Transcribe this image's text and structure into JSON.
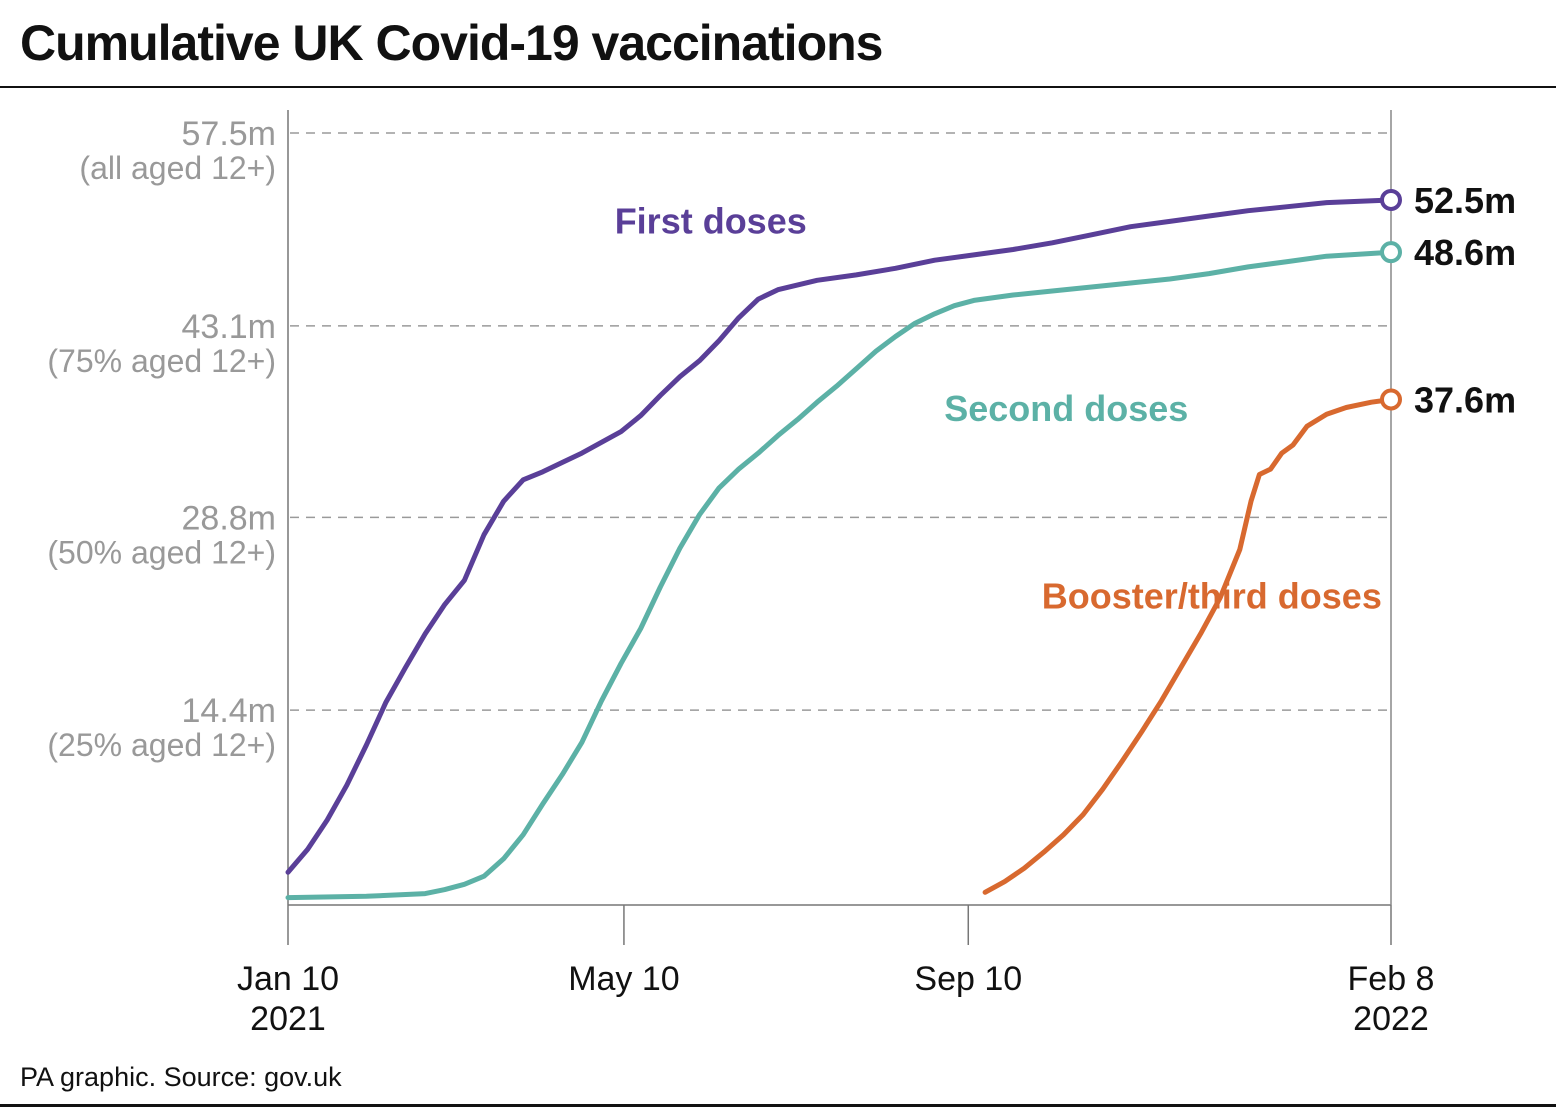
{
  "title": "Cumulative UK Covid-19 vaccinations",
  "source": "PA graphic. Source: gov.uk",
  "chart_data": {
    "type": "line",
    "xlabel": "",
    "ylabel": "",
    "ylim": [
      0,
      57.5
    ],
    "x_range": [
      "2021-01-10",
      "2022-02-08"
    ],
    "grid": "horizontal dashed",
    "y_ticks": [
      {
        "value": 57.5,
        "label": "57.5m",
        "sublabel": "(all aged 12+)"
      },
      {
        "value": 43.1,
        "label": "43.1m",
        "sublabel": "(75% aged 12+)"
      },
      {
        "value": 28.8,
        "label": "28.8m",
        "sublabel": "(50% aged 12+)"
      },
      {
        "value": 14.4,
        "label": "14.4m",
        "sublabel": "(25% aged 12+)"
      }
    ],
    "x_ticks": [
      {
        "date": "2021-01-10",
        "label": "Jan 10",
        "sublabel": "2021"
      },
      {
        "date": "2021-05-10",
        "label": "May 10",
        "sublabel": ""
      },
      {
        "date": "2021-09-10",
        "label": "Sep 10",
        "sublabel": ""
      },
      {
        "date": "2022-02-08",
        "label": "Feb 8",
        "sublabel": "2022"
      }
    ],
    "series": [
      {
        "name": "First doses",
        "color": "#5a3f98",
        "end_label": "52.5m",
        "label_date": "2021-06-10",
        "label_value": 50.0,
        "points": [
          [
            "2021-01-10",
            2.3
          ],
          [
            "2021-01-17",
            4.0
          ],
          [
            "2021-01-24",
            6.2
          ],
          [
            "2021-01-31",
            8.8
          ],
          [
            "2021-02-07",
            11.8
          ],
          [
            "2021-02-14",
            15.0
          ],
          [
            "2021-02-21",
            17.6
          ],
          [
            "2021-02-28",
            20.1
          ],
          [
            "2021-03-07",
            22.3
          ],
          [
            "2021-03-14",
            24.1
          ],
          [
            "2021-03-21",
            27.5
          ],
          [
            "2021-03-28",
            30.0
          ],
          [
            "2021-04-04",
            31.6
          ],
          [
            "2021-04-11",
            32.2
          ],
          [
            "2021-04-18",
            32.9
          ],
          [
            "2021-04-25",
            33.6
          ],
          [
            "2021-05-02",
            34.4
          ],
          [
            "2021-05-09",
            35.2
          ],
          [
            "2021-05-16",
            36.4
          ],
          [
            "2021-05-23",
            37.9
          ],
          [
            "2021-05-30",
            39.3
          ],
          [
            "2021-06-06",
            40.5
          ],
          [
            "2021-06-13",
            42.0
          ],
          [
            "2021-06-20",
            43.7
          ],
          [
            "2021-06-27",
            45.1
          ],
          [
            "2021-07-04",
            45.8
          ],
          [
            "2021-07-18",
            46.5
          ],
          [
            "2021-08-01",
            46.9
          ],
          [
            "2021-08-15",
            47.4
          ],
          [
            "2021-08-29",
            48.0
          ],
          [
            "2021-09-12",
            48.4
          ],
          [
            "2021-09-26",
            48.8
          ],
          [
            "2021-10-10",
            49.3
          ],
          [
            "2021-10-24",
            49.9
          ],
          [
            "2021-11-07",
            50.5
          ],
          [
            "2021-11-21",
            50.9
          ],
          [
            "2021-12-05",
            51.3
          ],
          [
            "2021-12-19",
            51.7
          ],
          [
            "2022-01-02",
            52.0
          ],
          [
            "2022-01-16",
            52.3
          ],
          [
            "2022-02-08",
            52.5
          ]
        ]
      },
      {
        "name": "Second doses",
        "color": "#5cb1a6",
        "end_label": "48.6m",
        "label_date": "2021-10-15",
        "label_value": 36.0,
        "points": [
          [
            "2021-01-10",
            0.4
          ],
          [
            "2021-02-07",
            0.5
          ],
          [
            "2021-02-28",
            0.7
          ],
          [
            "2021-03-07",
            1.0
          ],
          [
            "2021-03-14",
            1.4
          ],
          [
            "2021-03-21",
            2.0
          ],
          [
            "2021-03-28",
            3.3
          ],
          [
            "2021-04-04",
            5.1
          ],
          [
            "2021-04-11",
            7.4
          ],
          [
            "2021-04-18",
            9.6
          ],
          [
            "2021-04-25",
            12.0
          ],
          [
            "2021-05-02",
            15.1
          ],
          [
            "2021-05-09",
            17.9
          ],
          [
            "2021-05-16",
            20.5
          ],
          [
            "2021-05-23",
            23.6
          ],
          [
            "2021-05-30",
            26.5
          ],
          [
            "2021-06-06",
            29.0
          ],
          [
            "2021-06-13",
            31.0
          ],
          [
            "2021-06-20",
            32.4
          ],
          [
            "2021-06-27",
            33.6
          ],
          [
            "2021-07-04",
            34.9
          ],
          [
            "2021-07-11",
            36.1
          ],
          [
            "2021-07-18",
            37.4
          ],
          [
            "2021-07-25",
            38.6
          ],
          [
            "2021-08-01",
            39.9
          ],
          [
            "2021-08-08",
            41.2
          ],
          [
            "2021-08-15",
            42.3
          ],
          [
            "2021-08-22",
            43.3
          ],
          [
            "2021-08-29",
            44.0
          ],
          [
            "2021-09-05",
            44.6
          ],
          [
            "2021-09-12",
            45.0
          ],
          [
            "2021-09-26",
            45.4
          ],
          [
            "2021-10-10",
            45.7
          ],
          [
            "2021-10-24",
            46.0
          ],
          [
            "2021-11-07",
            46.3
          ],
          [
            "2021-11-21",
            46.6
          ],
          [
            "2021-12-05",
            47.0
          ],
          [
            "2021-12-19",
            47.5
          ],
          [
            "2022-01-02",
            47.9
          ],
          [
            "2022-01-16",
            48.3
          ],
          [
            "2022-02-08",
            48.6
          ]
        ]
      },
      {
        "name": "Booster/third doses",
        "color": "#d8692f",
        "end_label": "37.6m",
        "label_date": "2021-12-06",
        "label_value": 22.0,
        "points": [
          [
            "2021-09-16",
            0.8
          ],
          [
            "2021-09-23",
            1.6
          ],
          [
            "2021-09-30",
            2.6
          ],
          [
            "2021-10-07",
            3.8
          ],
          [
            "2021-10-14",
            5.1
          ],
          [
            "2021-10-21",
            6.6
          ],
          [
            "2021-10-28",
            8.5
          ],
          [
            "2021-11-04",
            10.6
          ],
          [
            "2021-11-11",
            12.8
          ],
          [
            "2021-11-18",
            15.1
          ],
          [
            "2021-11-25",
            17.6
          ],
          [
            "2021-12-02",
            20.1
          ],
          [
            "2021-12-09",
            22.8
          ],
          [
            "2021-12-16",
            26.4
          ],
          [
            "2021-12-20",
            30.0
          ],
          [
            "2021-12-23",
            32.0
          ],
          [
            "2021-12-27",
            32.4
          ],
          [
            "2021-12-31",
            33.6
          ],
          [
            "2022-01-04",
            34.2
          ],
          [
            "2022-01-09",
            35.6
          ],
          [
            "2022-01-16",
            36.5
          ],
          [
            "2022-01-23",
            37.0
          ],
          [
            "2022-02-01",
            37.4
          ],
          [
            "2022-02-08",
            37.6
          ]
        ]
      }
    ]
  }
}
